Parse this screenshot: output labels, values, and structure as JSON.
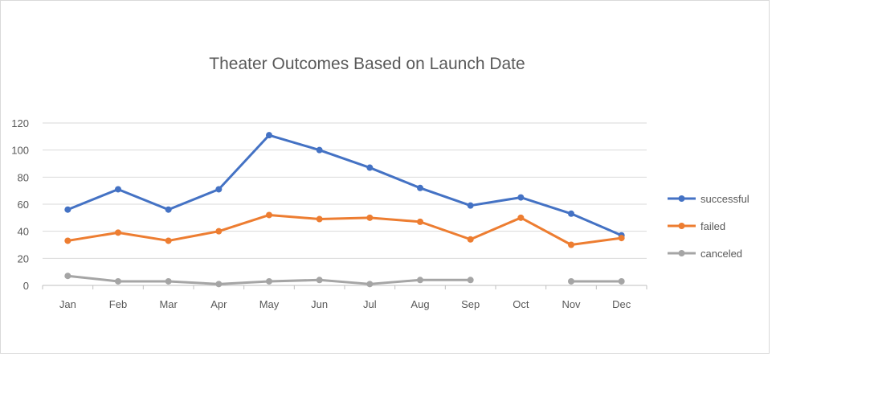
{
  "chart_data": {
    "type": "line",
    "title": "Theater Outcomes Based on Launch Date",
    "xlabel": "",
    "ylabel": "",
    "categories": [
      "Jan",
      "Feb",
      "Mar",
      "Apr",
      "May",
      "Jun",
      "Jul",
      "Aug",
      "Sep",
      "Oct",
      "Nov",
      "Dec"
    ],
    "ylim": [
      0,
      120
    ],
    "yticks": [
      "0",
      "20",
      "40",
      "60",
      "80",
      "100",
      "120"
    ],
    "grid": true,
    "legend_position": "right",
    "series": [
      {
        "name": "successful",
        "color": "#4472C4",
        "values": [
          56,
          71,
          56,
          71,
          111,
          100,
          87,
          72,
          59,
          65,
          53,
          37
        ]
      },
      {
        "name": "failed",
        "color": "#ED7D31",
        "values": [
          33,
          39,
          33,
          40,
          52,
          49,
          50,
          47,
          34,
          50,
          30,
          35
        ]
      },
      {
        "name": "canceled",
        "color": "#A5A5A5",
        "values": [
          7,
          3,
          3,
          1,
          3,
          4,
          1,
          4,
          4,
          null,
          3,
          3
        ]
      }
    ]
  }
}
